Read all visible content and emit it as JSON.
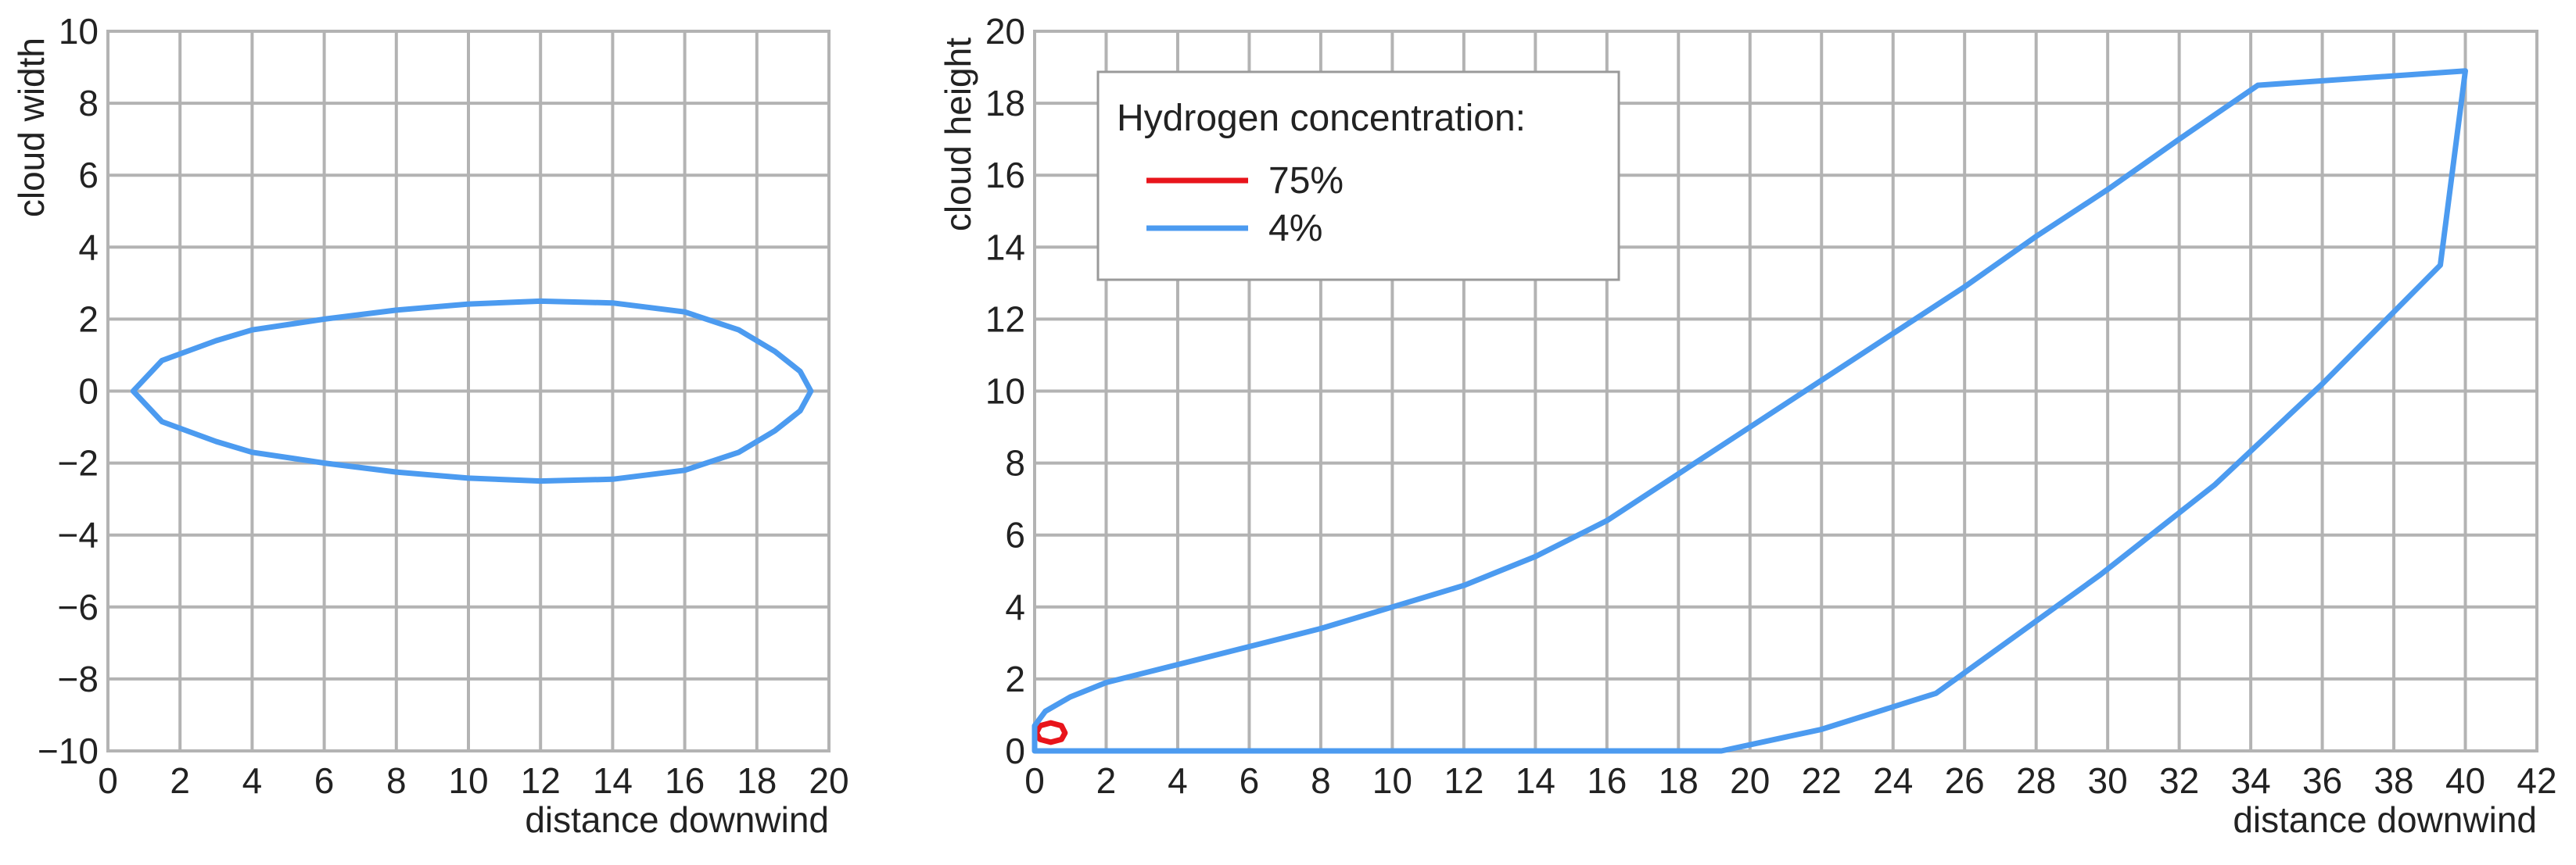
{
  "chart_data": [
    {
      "type": "line",
      "xlabel": "distance downwind",
      "ylabel": "cloud width",
      "xlim": [
        0,
        20
      ],
      "ylim": [
        -10,
        10
      ],
      "xticks": [
        0,
        2,
        4,
        6,
        8,
        10,
        12,
        14,
        16,
        18,
        20
      ],
      "yticks": [
        -10,
        -8,
        -6,
        -4,
        -2,
        0,
        2,
        4,
        6,
        8,
        10
      ],
      "ytick_labels": [
        "−10",
        "−8",
        "−6",
        "−4",
        "−2",
        "0",
        "2",
        "4",
        "6",
        "8",
        "10"
      ],
      "grid": true,
      "series": [
        {
          "name": "4%",
          "color": "#4c9bf0",
          "closed": true,
          "x": [
            0.7,
            1.5,
            3,
            4,
            6,
            8,
            10,
            12,
            14,
            16,
            17.5,
            18.5,
            19.2,
            19.5,
            19.2,
            18.5,
            17.5,
            16,
            14,
            12,
            10,
            8,
            6,
            4,
            3,
            1.5
          ],
          "y": [
            0,
            0.85,
            1.4,
            1.7,
            2.0,
            2.25,
            2.42,
            2.5,
            2.45,
            2.2,
            1.7,
            1.1,
            0.55,
            0,
            -0.55,
            -1.1,
            -1.7,
            -2.2,
            -2.45,
            -2.5,
            -2.42,
            -2.25,
            -2.0,
            -1.7,
            -1.4,
            -0.85
          ]
        }
      ]
    },
    {
      "type": "line",
      "xlabel": "distance downwind",
      "ylabel": "cloud height",
      "xlim": [
        0,
        42
      ],
      "ylim": [
        0,
        20
      ],
      "xticks": [
        0,
        2,
        4,
        6,
        8,
        10,
        12,
        14,
        16,
        18,
        20,
        22,
        24,
        26,
        28,
        30,
        32,
        34,
        36,
        38,
        40,
        42
      ],
      "yticks": [
        0,
        2,
        4,
        6,
        8,
        10,
        12,
        14,
        16,
        18,
        20
      ],
      "grid": true,
      "legend": {
        "title": "Hydrogen concentration:",
        "placement": "top-left"
      },
      "series": [
        {
          "name": "75%",
          "color": "#e8141b",
          "closed": true,
          "x": [
            0.05,
            0.15,
            0.45,
            0.75,
            0.85,
            0.75,
            0.45,
            0.15
          ],
          "y": [
            0.5,
            0.7,
            0.78,
            0.7,
            0.5,
            0.32,
            0.24,
            0.32
          ]
        },
        {
          "name": "4%",
          "color": "#4c9bf0",
          "closed": true,
          "x": [
            0,
            0.3,
            1,
            2,
            4,
            6,
            8,
            10,
            12,
            14,
            16,
            18,
            20,
            22,
            24,
            26,
            28,
            30,
            32,
            34.2,
            40,
            39.3,
            36,
            33,
            29.8,
            25.2,
            22,
            19.2,
            0
          ],
          "y": [
            0.7,
            1.1,
            1.5,
            1.9,
            2.4,
            2.9,
            3.4,
            4.0,
            4.6,
            5.4,
            6.4,
            7.7,
            9.0,
            10.3,
            11.6,
            12.9,
            14.3,
            15.6,
            17.0,
            18.5,
            18.9,
            13.5,
            10.2,
            7.4,
            4.9,
            1.6,
            0.6,
            0,
            0
          ]
        }
      ]
    }
  ]
}
